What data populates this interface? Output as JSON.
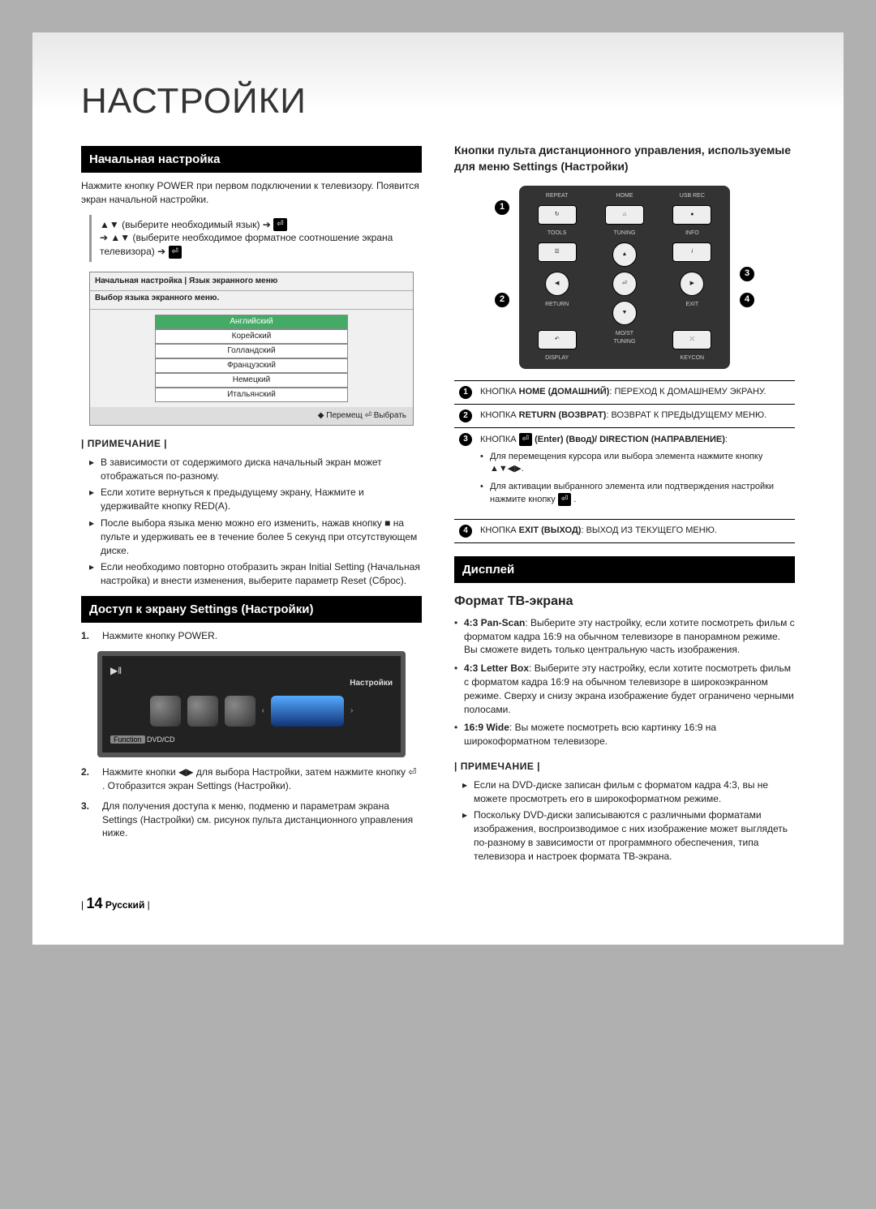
{
  "page": {
    "title": "НАСТРОЙКИ",
    "footer_page": "14",
    "footer_lang": "Русский"
  },
  "left": {
    "section1_title": "Начальная настройка",
    "intro": "Нажмите кнопку POWER при первом подключении к телевизору. Появится экран начальной настройки.",
    "nav_line1": "▲▼ (выберите необходимый язык) ➔",
    "nav_line2": "➔ ▲▼ (выберите необходимое форматное соотношение экрана телевизора) ➔",
    "osd": {
      "header": "Начальная настройка | Язык экранного меню",
      "sub": "Выбор языка экранного меню.",
      "items": [
        "Английский",
        "Корейский",
        "Голландский",
        "Французский",
        "Немецкий",
        "Итальянский"
      ],
      "footer": "◆ Перемещ   ⏎ Выбрать"
    },
    "note_label": "| ПРИМЕЧАНИЕ |",
    "notes": [
      "В зависимости от содержимого диска начальный экран может отображаться по-разному.",
      "Если хотите вернуться к предыдущему экрану, Нажмите и удерживайте кнопку RED(A).",
      "После выбора языка меню можно его изменить, нажав кнопку ■ на пульте и удерживать ее в течение более 5 секунд при отсутствующем диске.",
      "Если необходимо повторно отобразить экран Initial Setting (Начальная настройка) и внести изменения, выберите параметр Reset (Сброс)."
    ],
    "section2_title": "Доступ к экрану Settings (Настройки)",
    "step1": "Нажмите кнопку POWER.",
    "tv": {
      "title": "Настройки",
      "fn_label": "Function",
      "fn_value": "DVD/CD"
    },
    "step2": "Нажмите кнопки ◀▶ для выбора Настройки, затем нажмите кнопку ⏎ . Отобразится экран Settings (Настройки).",
    "step3": "Для получения доступа к меню, подменю и параметрам экрана Settings (Настройки) см. рисунок пульта дистанционного управления ниже."
  },
  "right": {
    "remote_heading": "Кнопки пульта дистанционного управления, используемые для меню Settings (Настройки)",
    "remote_labels": {
      "repeat": "REPEAT",
      "home": "HOME",
      "usbrec": "USB REC",
      "tools": "TOOLS",
      "info": "INFO",
      "return": "RETURN",
      "exit": "EXIT",
      "display": "DISPLAY",
      "most": "MO/ST TUNING",
      "keycon": "KEYCON",
      "tuning": "TUNING"
    },
    "callouts": {
      "c1": "1",
      "c2": "2",
      "c3": "3",
      "c4": "4"
    },
    "table": [
      {
        "n": "1",
        "html": "КНОПКА <b>HOME (ДОМАШНИЙ)</b>: ПЕРЕХОД К ДОМАШНЕМУ ЭКРАНУ."
      },
      {
        "n": "2",
        "html": "КНОПКА <b>RETURN (ВОЗВРАТ)</b>: ВОЗВРАТ К ПРЕДЫДУЩЕМУ МЕНЮ."
      },
      {
        "n": "3",
        "html": "КНОПКА <span class='enter-icon'>⏎</span> <b>(Enter) (Ввод)/ DIRECTION (НАПРАВЛЕНИЕ)</b>:<ul class='bullets'><li>Для перемещения курсора или выбора элемента нажмите кнопку ▲▼◀▶.</li><li>Для активации выбранного элемента или подтверждения настройки нажмите кнопку <span class='enter-icon'>⏎</span> .</li></ul>"
      },
      {
        "n": "4",
        "html": "КНОПКА <b>EXIT (ВЫХОД)</b>: ВЫХОД ИЗ ТЕКУЩЕГО МЕНЮ."
      }
    ],
    "section_display": "Дисплей",
    "tv_format_title": "Формат ТВ-экрана",
    "tv_formats": [
      "<b>4:3 Pan-Scan</b>: Выберите эту настройку, если хотите посмотреть фильм с форматом кадра 16:9 на обычном телевизоре в панорамном режиме. Вы сможете видеть только центральную часть изображения.",
      "<b>4:3 Letter Box</b>: Выберите эту настройку, если хотите посмотреть фильм с форматом кадра 16:9 на обычном телевизоре в широкоэкранном режиме. Сверху и снизу экрана изображение будет ограничено черными полосами.",
      "<b>16:9 Wide</b>: Вы можете посмотреть всю картинку 16:9 на широкоформатном телевизоре."
    ],
    "note_label": "| ПРИМЕЧАНИЕ |",
    "notes": [
      "Если на DVD-диске записан фильм с форматом кадра 4:3, вы не можете просмотреть его в широкоформатном режиме.",
      "Поскольку DVD-диски записываются с различными форматами изображения, воспроизводимое с них изображение может выглядеть по-разному в зависимости от программного обеспечения, типа телевизора и настроек формата ТВ-экрана."
    ]
  }
}
